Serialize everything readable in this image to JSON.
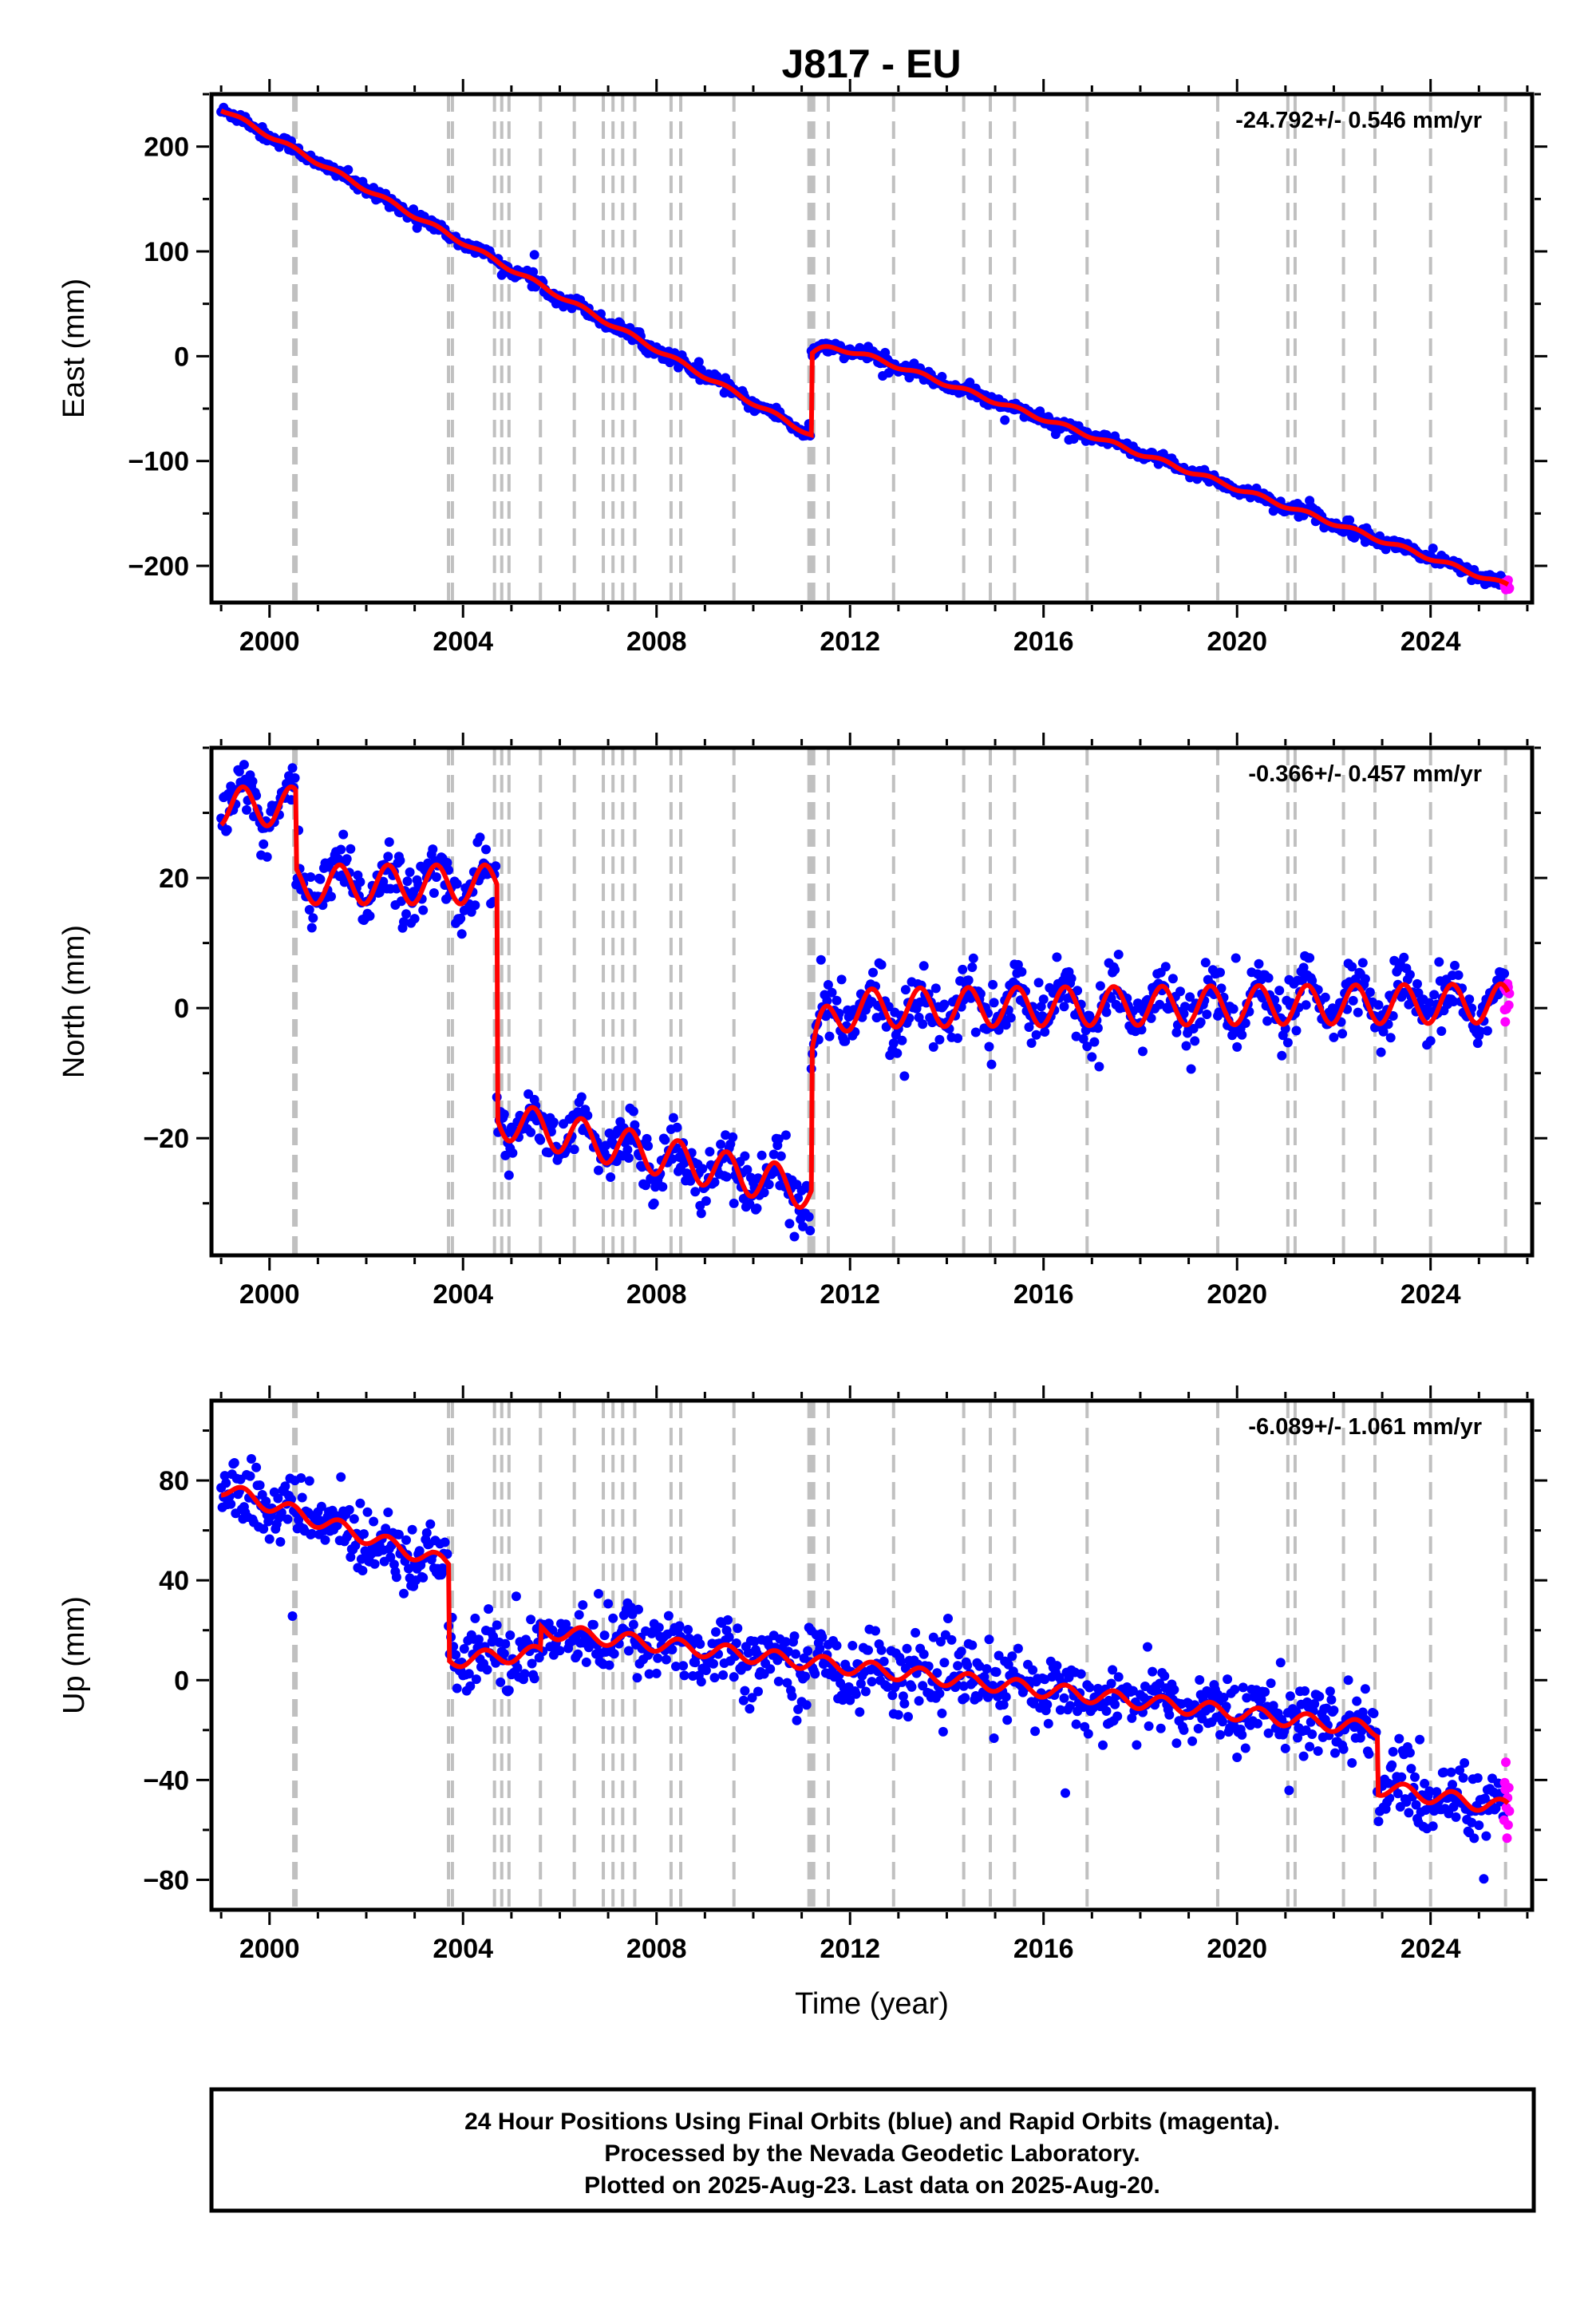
{
  "title": "J817 - EU",
  "footer": {
    "line1": "24 Hour Positions Using Final Orbits (blue) and Rapid Orbits (magenta).",
    "line2": "Processed by the Nevada Geodetic Laboratory.",
    "line3": "Plotted on 2025-Aug-23. Last data on 2025-Aug-20."
  },
  "colors": {
    "final_orbits": "#0000ff",
    "rapid_orbits": "#ff00ff",
    "model": "#ff0000",
    "event_lines": "#c0c0c0"
  },
  "chart_data": [
    {
      "type": "scatter",
      "panel": "east",
      "ylabel": "East (mm)",
      "xlabel": "",
      "rate_text": "-24.792+/- 0.546 mm/yr",
      "xlim": [
        1998.8,
        2026.1
      ],
      "ylim": [
        -235,
        250
      ],
      "xticks": [
        2000,
        2004,
        2008,
        2012,
        2016,
        2020,
        2024
      ],
      "yticks": [
        -200,
        -100,
        0,
        100,
        200
      ],
      "grid": false,
      "series": [
        {
          "name": "Final Orbits",
          "color": "#0000ff"
        },
        {
          "name": "Rapid Orbits",
          "color": "#ff00ff"
        },
        {
          "name": "Model",
          "color": "#ff0000"
        }
      ],
      "model": {
        "segments": [
          {
            "t0": 1999.0,
            "t1": 2011.2,
            "start": 236,
            "rate": -25.5
          },
          {
            "t0": 2011.2,
            "t1": 2025.6,
            "start": 20,
            "rate": -16.6
          }
        ],
        "postseismic": {
          "t": 2011.2,
          "amp": 18,
          "tau": 0.35
        },
        "annual_amp": 2,
        "noise": 3
      }
    },
    {
      "type": "scatter",
      "panel": "north",
      "ylabel": "North (mm)",
      "xlabel": "",
      "rate_text": "-0.366+/- 0.457 mm/yr",
      "xlim": [
        1998.8,
        2026.1
      ],
      "ylim": [
        -38,
        40
      ],
      "xticks": [
        2000,
        2004,
        2008,
        2012,
        2016,
        2020,
        2024
      ],
      "yticks": [
        -20,
        0,
        20
      ],
      "grid": false,
      "series": [
        {
          "name": "Final Orbits",
          "color": "#0000ff"
        },
        {
          "name": "Rapid Orbits",
          "color": "#ff00ff"
        },
        {
          "name": "Model",
          "color": "#ff0000"
        }
      ],
      "model": {
        "segments": [
          {
            "t0": 1999.0,
            "t1": 2000.55,
            "start": 31,
            "rate": 0
          },
          {
            "t0": 2000.55,
            "t1": 2004.7,
            "start": 19,
            "rate": 0
          },
          {
            "t0": 2004.7,
            "t1": 2011.2,
            "start": -17,
            "rate": -1.7
          },
          {
            "t0": 2011.2,
            "t1": 2025.6,
            "start": 0,
            "rate": 0.05
          }
        ],
        "postseismic": {
          "t": 2011.2,
          "amp": 7,
          "tau": 0.3
        },
        "annual_amp": 3,
        "noise": 2.2
      }
    },
    {
      "type": "scatter",
      "panel": "up",
      "ylabel": "Up (mm)",
      "xlabel": "Time (year)",
      "rate_text": "-6.089+/- 1.061 mm/yr",
      "xlim": [
        1998.8,
        2026.1
      ],
      "ylim": [
        -92,
        112
      ],
      "xticks": [
        2000,
        2004,
        2008,
        2012,
        2016,
        2020,
        2024
      ],
      "yticks": [
        -80,
        -40,
        0,
        40,
        80
      ],
      "grid": false,
      "series": [
        {
          "name": "Final Orbits",
          "color": "#0000ff"
        },
        {
          "name": "Rapid Orbits",
          "color": "#ff00ff"
        },
        {
          "name": "Model",
          "color": "#ff0000"
        }
      ],
      "model": {
        "segments": [
          {
            "t0": 1999.0,
            "t1": 2003.7,
            "start": 77,
            "rate": -6.5
          },
          {
            "t0": 2003.7,
            "t1": 2005.6,
            "start": 8,
            "rate": 1.5
          },
          {
            "t0": 2005.6,
            "t1": 2022.9,
            "start": 20,
            "rate": -2.3
          },
          {
            "t0": 2022.9,
            "t1": 2025.6,
            "start": -43,
            "rate": -3.0
          }
        ],
        "postseismic": null,
        "annual_amp": 3,
        "noise": 7
      }
    }
  ],
  "event_lines": [
    2000.5,
    2000.55,
    2003.7,
    2003.78,
    2004.65,
    2004.8,
    2004.95,
    2005.6,
    2006.3,
    2006.9,
    2007.1,
    2007.3,
    2007.55,
    2008.3,
    2008.5,
    2009.6,
    2011.15,
    2011.2,
    2011.25,
    2011.55,
    2012.9,
    2014.35,
    2014.9,
    2015.4,
    2016.9,
    2019.6,
    2021.05,
    2021.2,
    2022.2,
    2022.85,
    2024.0,
    2025.55
  ]
}
